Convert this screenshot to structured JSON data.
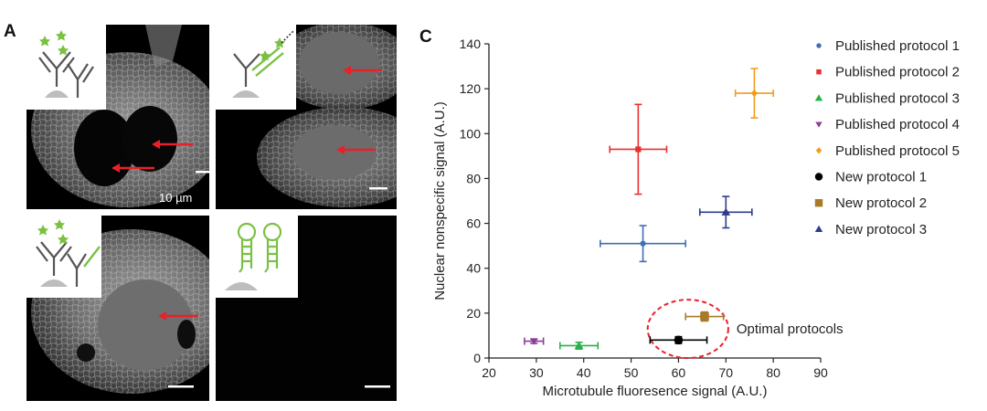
{
  "panels": {
    "a_label": "A",
    "c_label": "C",
    "scale_bar_label": "10 µm"
  },
  "icons": [
    {
      "panel": "top-left",
      "name": "two-antibody-stack-icon",
      "color": "#7ac143"
    },
    {
      "panel": "top-right",
      "name": "labeled-antibody-probe-icon",
      "color": "#7ac143"
    },
    {
      "panel": "bottom-left",
      "name": "antibody-with-green-tag-icon",
      "color": "#7ac143"
    },
    {
      "panel": "bottom-right",
      "name": "hairpin-probe-icon",
      "color": "#7ac143"
    }
  ],
  "colors": {
    "arrow": "#e8202a",
    "ellipse": "#e8202a",
    "icon_green": "#7ac143",
    "icon_gray": "#555555"
  },
  "chart_data": {
    "type": "scatter",
    "title": "",
    "xlabel": "Microtubule fluoresence signal (A.U.)",
    "ylabel": "Nuclear nonspecific signal (A.U.)",
    "xlim": [
      20,
      90
    ],
    "ylim": [
      0,
      140
    ],
    "xticks": [
      20,
      30,
      40,
      50,
      60,
      70,
      80,
      90
    ],
    "yticks": [
      0,
      20,
      40,
      60,
      80,
      100,
      120,
      140
    ],
    "grid": false,
    "legend": "right",
    "series": [
      {
        "name": "Published protocol 1",
        "color": "#3f6fb5",
        "marker": "circle-small",
        "x": 52.5,
        "y": 51,
        "xerr": 9,
        "yerr": 8
      },
      {
        "name": "Published protocol 2",
        "color": "#e8302f",
        "marker": "square-small",
        "x": 51.5,
        "y": 93,
        "xerr": 6,
        "yerr": 20
      },
      {
        "name": "Published protocol 3",
        "color": "#2ab04a",
        "marker": "triangle-up",
        "x": 39,
        "y": 5.5,
        "xerr": 4,
        "yerr": 1.5
      },
      {
        "name": "Published protocol 4",
        "color": "#8e3c97",
        "marker": "triangle-down",
        "x": 29.5,
        "y": 7.5,
        "xerr": 2,
        "yerr": 1
      },
      {
        "name": "Published protocol 5",
        "color": "#f39b1e",
        "marker": "diamond",
        "x": 76,
        "y": 118,
        "xerr": 4,
        "yerr": 11
      },
      {
        "name": "New protocol 1",
        "color": "#000000",
        "marker": "circle",
        "x": 60,
        "y": 8,
        "xerr": 6,
        "yerr": 1.5
      },
      {
        "name": "New protocol 2",
        "color": "#a87a2a",
        "marker": "square",
        "x": 65.5,
        "y": 18.5,
        "xerr": 4,
        "yerr": 2
      },
      {
        "name": "New protocol 3",
        "color": "#2e3b8e",
        "marker": "triangle-up",
        "x": 70,
        "y": 65,
        "xerr": 5.5,
        "yerr": 7
      }
    ],
    "annotations": [
      {
        "text": "Optimal protocols",
        "shape": "dashed-ellipse",
        "center": [
          62,
          13
        ],
        "radius": [
          8.5,
          13
        ]
      }
    ]
  }
}
